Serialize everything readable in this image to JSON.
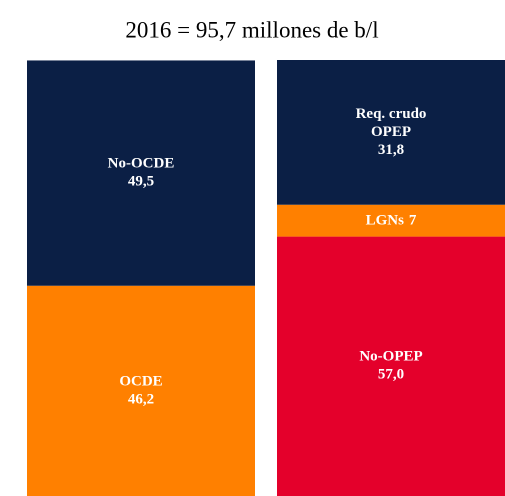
{
  "chart_data": {
    "type": "stacked_bar",
    "title": "2016 = 95,7 millones de b/l",
    "ylim": [
      0,
      95.8
    ],
    "bars": [
      {
        "segments": [
          {
            "name": [
              "OCDE"
            ],
            "value": 46.2,
            "value_label": "46,2",
            "color": "#ff8000"
          },
          {
            "name": [
              "No-OCDE"
            ],
            "value": 49.5,
            "value_label": "49,5",
            "color": "#0b1f45"
          }
        ]
      },
      {
        "segments": [
          {
            "name": [
              "No-OPEP"
            ],
            "value": 57.0,
            "value_label": "57,0",
            "color": "#e4002b",
            "inline": false
          },
          {
            "name": [
              "LGNs"
            ],
            "value": 7,
            "value_label": "7",
            "color": "#ff8000",
            "inline": true
          },
          {
            "name": [
              "Req. crudo",
              "OPEP"
            ],
            "value": 31.8,
            "value_label": "31,8",
            "color": "#0b1f45",
            "inline": false
          }
        ]
      }
    ]
  }
}
